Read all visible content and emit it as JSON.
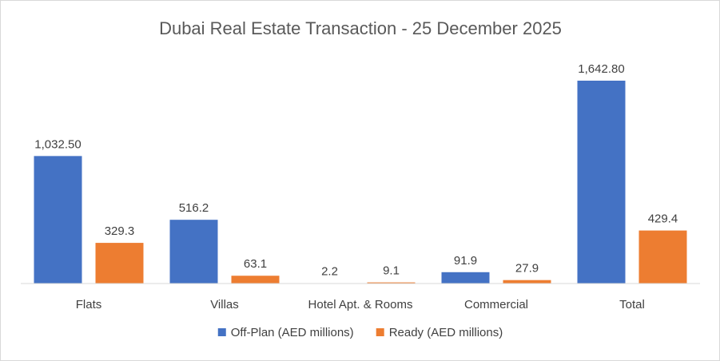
{
  "chart_data": {
    "type": "bar",
    "title": "Dubai Real Estate Transaction - 25 December 2025",
    "xlabel": "",
    "ylabel": "",
    "categories": [
      "Flats",
      "Villas",
      "Hotel Apt. & Rooms",
      "Commercial",
      "Total"
    ],
    "series": [
      {
        "name": "Off-Plan (AED millions)",
        "color": "#4472c4",
        "values": [
          1032.5,
          516.2,
          2.2,
          91.9,
          1642.8
        ],
        "labels": [
          "1,032.50",
          "516.2",
          "2.2",
          "91.9",
          "1,642.80"
        ]
      },
      {
        "name": "Ready (AED millions)",
        "color": "#ed7d31",
        "values": [
          329.3,
          63.1,
          9.1,
          27.9,
          429.4
        ],
        "labels": [
          "329.3",
          "63.1",
          "9.1",
          "27.9",
          "429.4"
        ]
      }
    ],
    "ylim": [
      0,
      1642.8
    ],
    "grid": false,
    "legend_position": "bottom"
  }
}
